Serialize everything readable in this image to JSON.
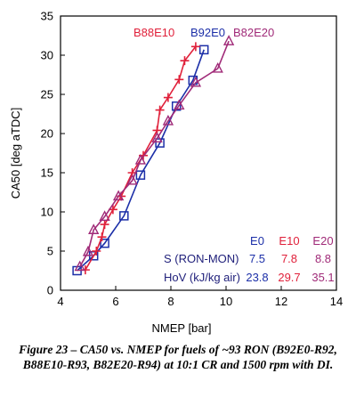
{
  "chart_data": {
    "type": "line",
    "xlabel": "NMEP [bar]",
    "ylabel": "CA50 [deg aTDC]",
    "xlim": [
      4,
      14
    ],
    "ylim": [
      0,
      35
    ],
    "xticks": [
      "4",
      "6",
      "8",
      "10",
      "12",
      "14"
    ],
    "yticks": [
      "0",
      "5",
      "10",
      "15",
      "20",
      "25",
      "30",
      "35"
    ],
    "grid": false,
    "legend_position": "top",
    "series": [
      {
        "name": "B92E0",
        "color": "#1c2fa8",
        "marker": "square",
        "points": [
          [
            4.6,
            2.5
          ],
          [
            5.2,
            4.4
          ],
          [
            5.6,
            6.0
          ],
          [
            6.3,
            9.5
          ],
          [
            6.9,
            14.7
          ],
          [
            7.6,
            18.8
          ],
          [
            8.2,
            23.5
          ],
          [
            8.8,
            26.8
          ],
          [
            9.2,
            30.7
          ]
        ]
      },
      {
        "name": "B88E10",
        "color": "#e0203a",
        "marker": "plus",
        "points": [
          [
            4.9,
            2.6
          ],
          [
            5.3,
            5.0
          ],
          [
            5.5,
            6.8
          ],
          [
            5.6,
            8.4
          ],
          [
            5.9,
            10.3
          ],
          [
            6.2,
            12.0
          ],
          [
            6.6,
            15.0
          ],
          [
            7.0,
            17.2
          ],
          [
            7.5,
            20.4
          ],
          [
            7.6,
            23.0
          ],
          [
            7.9,
            24.6
          ],
          [
            8.3,
            26.9
          ],
          [
            8.5,
            29.3
          ],
          [
            8.9,
            31.1
          ]
        ]
      },
      {
        "name": "B82E20",
        "color": "#a02a78",
        "marker": "triangle",
        "points": [
          [
            4.7,
            3.0
          ],
          [
            5.0,
            4.9
          ],
          [
            5.2,
            7.7
          ],
          [
            5.6,
            9.4
          ],
          [
            6.1,
            12.0
          ],
          [
            6.6,
            14.0
          ],
          [
            6.9,
            16.6
          ],
          [
            7.5,
            19.4
          ],
          [
            7.9,
            21.6
          ],
          [
            8.3,
            23.6
          ],
          [
            8.9,
            26.5
          ],
          [
            9.7,
            28.3
          ],
          [
            10.1,
            31.8
          ]
        ]
      }
    ],
    "annotation_table": {
      "headers": [
        "E0",
        "E10",
        "E20"
      ],
      "header_colors": [
        "#1c2fa8",
        "#e0203a",
        "#a02a78"
      ],
      "rows": [
        {
          "label": "S (RON-MON)",
          "values": [
            "7.5",
            "7.8",
            "8.8"
          ]
        },
        {
          "label": "HoV (kJ/kg air)",
          "values": [
            "23.8",
            "29.7",
            "35.1"
          ]
        }
      ]
    }
  },
  "caption": "Figure 23 – CA50 vs. NMEP for fuels of ~93 RON (B92E0-R92, B88E10-R93, B82E20-R94) at 10:1 CR and 1500 rpm with DI."
}
